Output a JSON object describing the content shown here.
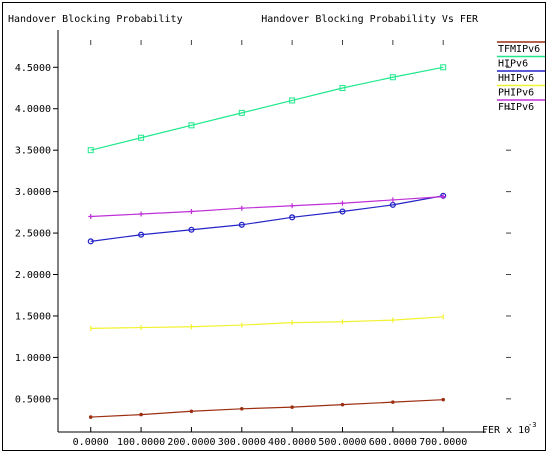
{
  "chart_data": {
    "type": "line",
    "title": "Handover Blocking Probability Vs FER",
    "ylabel": "Handover Blocking Probability",
    "xlabel": "FER x 10",
    "xlabel_exponent": "-3",
    "x": [
      0,
      100,
      200,
      300,
      400,
      500,
      600,
      700
    ],
    "x_tick_labels": [
      "0.0000",
      "100.0000",
      "200.0000",
      "300.0000",
      "400.0000",
      "500.0000",
      "600.0000",
      "700.0000"
    ],
    "y_ticks": [
      0.5,
      1.0,
      1.5,
      2.0,
      2.5,
      3.0,
      3.5,
      4.0,
      4.5
    ],
    "y_tick_labels": [
      "0.5000",
      "1.0000",
      "1.5000",
      "2.0000",
      "2.5000",
      "3.0000",
      "3.5000",
      "4.0000",
      "4.5000"
    ],
    "xlim": [
      -65,
      785
    ],
    "ylim": [
      0.1,
      4.95
    ],
    "grid": false,
    "legend_position": "right",
    "series": [
      {
        "name": "TFMIPv6",
        "color": "#9c2f12",
        "marker": "dot",
        "values": [
          0.28,
          0.31,
          0.35,
          0.38,
          0.4,
          0.43,
          0.46,
          0.49
        ]
      },
      {
        "name": "HIPv6",
        "color": "#1fe88c",
        "marker": "square",
        "values": [
          3.5,
          3.65,
          3.8,
          3.95,
          4.1,
          4.25,
          4.38,
          4.5
        ]
      },
      {
        "name": "HHIPv6",
        "color": "#2424c8",
        "marker": "circle",
        "values": [
          2.4,
          2.48,
          2.54,
          2.6,
          2.69,
          2.76,
          2.84,
          2.95
        ]
      },
      {
        "name": "PHIPv6",
        "color": "#f2f230",
        "marker": "tick",
        "values": [
          1.35,
          1.36,
          1.37,
          1.39,
          1.42,
          1.43,
          1.45,
          1.49
        ]
      },
      {
        "name": "FHIPv6",
        "color": "#c030d8",
        "marker": "plus",
        "values": [
          2.7,
          2.73,
          2.76,
          2.8,
          2.83,
          2.86,
          2.9,
          2.94
        ]
      }
    ]
  }
}
